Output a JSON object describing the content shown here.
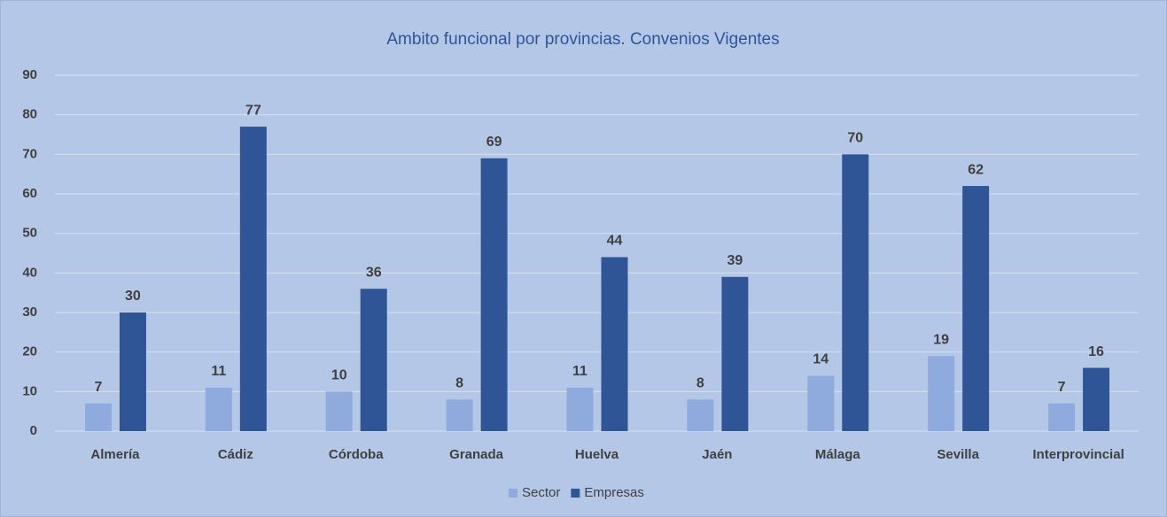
{
  "chart_data": {
    "type": "bar",
    "title": "Ambito funcional por provincias. Convenios Vigentes",
    "categories": [
      "Almería",
      "Cádiz",
      "Córdoba",
      "Granada",
      "Huelva",
      "Jaén",
      "Málaga",
      "Sevilla",
      "Interprovincial"
    ],
    "series": [
      {
        "name": "Sector",
        "color": "#8faadc",
        "values": [
          7,
          11,
          10,
          8,
          11,
          8,
          14,
          19,
          7
        ]
      },
      {
        "name": "Empresas",
        "color": "#2f5597",
        "values": [
          30,
          77,
          36,
          69,
          44,
          39,
          70,
          62,
          16
        ]
      }
    ],
    "ylim": [
      0,
      90
    ],
    "yticks": [
      0,
      10,
      20,
      30,
      40,
      50,
      60,
      70,
      80,
      90
    ],
    "grid": true,
    "legend": "bottom"
  }
}
